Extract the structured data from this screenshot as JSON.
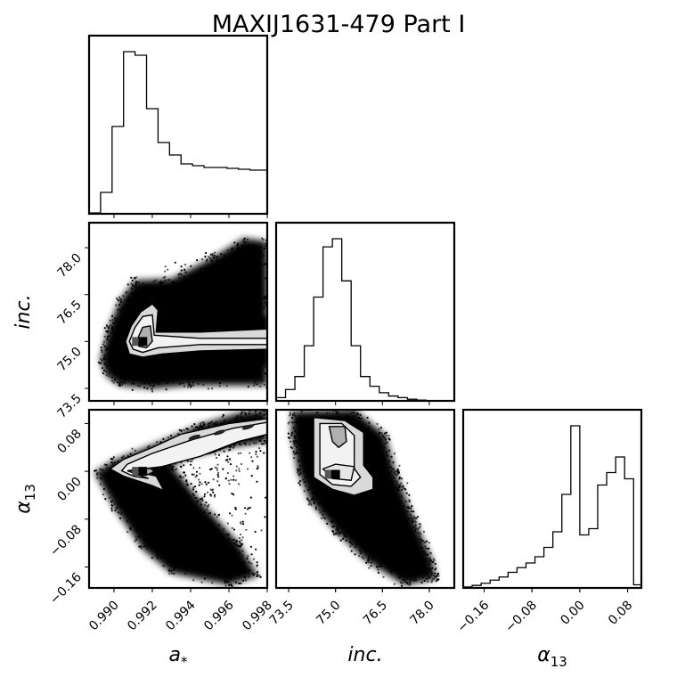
{
  "chart_data": {
    "type": "corner",
    "title": "MAXIJ1631-479 Part I",
    "parameters": [
      {
        "key": "a",
        "label": "a",
        "label_sub": "*",
        "range": [
          0.9887,
          0.998
        ],
        "ticks": [
          0.99,
          0.992,
          0.994,
          0.996,
          0.998
        ],
        "tick_labels": [
          "0.990",
          "0.992",
          "0.994",
          "0.996",
          "0.998"
        ]
      },
      {
        "key": "inc",
        "label": "inc.",
        "label_sub": "",
        "range": [
          73.1,
          78.8
        ],
        "ticks": [
          73.5,
          75.0,
          76.5,
          78.0
        ],
        "tick_labels": [
          "73.5",
          "75.0",
          "76.5",
          "78.0"
        ]
      },
      {
        "key": "alpha",
        "label": "α",
        "label_sub": "13",
        "range": [
          -0.195,
          0.103
        ],
        "ticks": [
          -0.16,
          -0.08,
          0.0,
          0.08
        ],
        "tick_labels": [
          "−0.16",
          "−0.08",
          "0.00",
          "0.08"
        ]
      }
    ],
    "histograms": {
      "a": {
        "bin_edges": [
          0.9887,
          0.9893,
          0.9899,
          0.9905,
          0.9911,
          0.9917,
          0.9923,
          0.9929,
          0.9935,
          0.9941,
          0.9947,
          0.9953,
          0.9959,
          0.9965,
          0.9971,
          0.9977,
          0.998
        ],
        "counts": [
          0.5,
          12,
          49,
          91,
          89,
          59,
          40,
          33,
          28,
          27,
          26,
          26,
          25.5,
          25,
          24.5,
          24.5
        ]
      },
      "inc": {
        "bin_edges": [
          73.1,
          73.4,
          73.7,
          74.0,
          74.3,
          74.6,
          74.9,
          75.2,
          75.5,
          75.8,
          76.1,
          76.4,
          76.7,
          77.0,
          77.3,
          77.6,
          77.9,
          78.2,
          78.5,
          78.8
        ],
        "counts": [
          2,
          7,
          15,
          34,
          64,
          95,
          100,
          74,
          34,
          15,
          9,
          5,
          3,
          2,
          1,
          0.5,
          0.2,
          0.1,
          0
        ]
      },
      "alpha": {
        "bin_edges": [
          -0.195,
          -0.18,
          -0.165,
          -0.15,
          -0.135,
          -0.12,
          -0.105,
          -0.09,
          -0.075,
          -0.06,
          -0.045,
          -0.03,
          -0.015,
          0,
          0.015,
          0.03,
          0.045,
          0.06,
          0.075,
          0.09,
          0.103
        ],
        "counts": [
          0.3,
          0.8,
          1.5,
          2.5,
          3.5,
          5,
          6.5,
          8,
          10,
          13,
          18,
          30,
          52,
          17,
          19,
          33,
          37,
          42,
          35,
          1
        ]
      }
    },
    "density_panels": [
      {
        "x": "a",
        "y": "inc",
        "mode": {
          "x": 0.9915,
          "y": 75.0
        },
        "contours": [
          [
            [
              0.9906,
              75.0
            ],
            [
              0.9909,
              75.5
            ],
            [
              0.9914,
              75.95
            ],
            [
              0.992,
              76.2
            ],
            [
              0.9923,
              76.0
            ],
            [
              0.9922,
              75.3
            ],
            [
              0.9945,
              75.3
            ],
            [
              0.998,
              75.4
            ],
            [
              0.998,
              74.75
            ],
            [
              0.9945,
              74.7
            ],
            [
              0.9925,
              74.6
            ],
            [
              0.9915,
              74.5
            ],
            [
              0.9908,
              74.6
            ]
          ],
          [
            [
              0.9908,
              75.0
            ],
            [
              0.9911,
              75.45
            ],
            [
              0.9915,
              75.8
            ],
            [
              0.992,
              75.85
            ],
            [
              0.9921,
              75.2
            ],
            [
              0.9945,
              75.1
            ],
            [
              0.998,
              75.1
            ],
            [
              0.998,
              74.9
            ],
            [
              0.9945,
              74.9
            ],
            [
              0.9923,
              74.8
            ],
            [
              0.9915,
              74.65
            ],
            [
              0.991,
              74.75
            ]
          ],
          [
            [
              0.9912,
              75.05
            ],
            [
              0.9915,
              75.45
            ],
            [
              0.9919,
              75.5
            ],
            [
              0.992,
              75.0
            ],
            [
              0.9917,
              74.8
            ],
            [
              0.9913,
              74.85
            ]
          ]
        ],
        "cloud": [
          [
            [
              0.9893,
              74.4
            ],
            [
              0.9897,
              75.4
            ],
            [
              0.9903,
              76.3
            ],
            [
              0.9911,
              76.95
            ],
            [
              0.993,
              77.0
            ],
            [
              0.9952,
              77.7
            ],
            [
              0.9968,
              78.3
            ],
            [
              0.998,
              78.2
            ],
            [
              0.998,
              76.3
            ],
            [
              0.9965,
              76.2
            ],
            [
              0.9952,
              76.0
            ],
            [
              0.9942,
              75.7
            ],
            [
              0.9943,
              76.5
            ],
            [
              0.998,
              76.4
            ],
            [
              0.998,
              73.6
            ],
            [
              0.994,
              73.6
            ],
            [
              0.992,
              73.5
            ],
            [
              0.9903,
              73.6
            ],
            [
              0.9896,
              73.9
            ]
          ],
          [
            [
              0.99,
              74.6
            ],
            [
              0.9903,
              75.5
            ],
            [
              0.9909,
              76.2
            ],
            [
              0.9918,
              76.55
            ],
            [
              0.9926,
              76.3
            ],
            [
              0.9925,
              75.6
            ],
            [
              0.995,
              75.7
            ],
            [
              0.998,
              75.8
            ],
            [
              0.998,
              74.2
            ],
            [
              0.995,
              74.2
            ],
            [
              0.9925,
              74.1
            ],
            [
              0.991,
              74.1
            ],
            [
              0.9902,
              74.2
            ]
          ]
        ]
      },
      {
        "x": "a",
        "y": "alpha",
        "mode": {
          "x": 0.9915,
          "y": 0.0
        },
        "contours": [
          [
            [
              0.9905,
              0.004
            ],
            [
              0.9925,
              0.012
            ],
            [
              0.995,
              0.03
            ],
            [
              0.997,
              0.055
            ],
            [
              0.998,
              0.068
            ],
            [
              0.998,
              0.088
            ],
            [
              0.996,
              0.08
            ],
            [
              0.9935,
              0.062
            ],
            [
              0.992,
              0.04
            ],
            [
              0.9905,
              0.02
            ],
            [
              0.9898,
              0.004
            ],
            [
              0.9905,
              -0.008
            ],
            [
              0.992,
              -0.024
            ],
            [
              0.9926,
              -0.032
            ],
            [
              0.9922,
              -0.008
            ]
          ],
          [
            [
              0.9907,
              0.001
            ],
            [
              0.9925,
              0.008
            ],
            [
              0.9945,
              0.025
            ],
            [
              0.9965,
              0.05
            ],
            [
              0.998,
              0.062
            ],
            [
              0.998,
              0.082
            ],
            [
              0.9962,
              0.072
            ],
            [
              0.994,
              0.052
            ],
            [
              0.992,
              0.03
            ],
            [
              0.9907,
              0.012
            ],
            [
              0.9904,
              0.001
            ],
            [
              0.991,
              -0.008
            ],
            [
              0.9918,
              -0.012
            ]
          ],
          [
            [
              0.991,
              0.0
            ],
            [
              0.9914,
              0.004
            ],
            [
              0.9919,
              0.005
            ],
            [
              0.9921,
              0.0
            ],
            [
              0.9918,
              -0.005
            ],
            [
              0.9913,
              -0.005
            ]
          ]
        ],
        "cloud": [
          [
            [
              0.989,
              -0.002
            ],
            [
              0.99,
              0.018
            ],
            [
              0.9925,
              0.05
            ],
            [
              0.9945,
              0.078
            ],
            [
              0.9965,
              0.097
            ],
            [
              0.998,
              0.103
            ],
            [
              0.998,
              0.05
            ],
            [
              0.996,
              0.04
            ],
            [
              0.994,
              0.025
            ],
            [
              0.993,
              0.01
            ],
            [
              0.9945,
              -0.05
            ],
            [
              0.9965,
              -0.12
            ],
            [
              0.9975,
              -0.175
            ],
            [
              0.996,
              -0.19
            ],
            [
              0.993,
              -0.17
            ],
            [
              0.9915,
              -0.13
            ],
            [
              0.99,
              -0.06
            ]
          ]
        ],
        "streaks": [
          [
            0.9942,
            0.057
          ],
          [
            0.9955,
            0.065
          ],
          [
            0.997,
            0.074
          ]
        ]
      },
      {
        "x": "inc",
        "y": "alpha",
        "mode": {
          "x": 75.0,
          "y": -0.005
        },
        "contours": [
          [
            [
              74.3,
              0.09
            ],
            [
              75.3,
              0.085
            ],
            [
              75.9,
              0.065
            ],
            [
              75.9,
              0.01
            ],
            [
              76.2,
              -0.01
            ],
            [
              76.2,
              -0.03
            ],
            [
              75.6,
              -0.04
            ],
            [
              74.9,
              -0.03
            ],
            [
              74.3,
              -0.01
            ],
            [
              74.3,
              0.04
            ]
          ],
          [
            [
              74.5,
              0.08
            ],
            [
              75.2,
              0.08
            ],
            [
              75.6,
              0.06
            ],
            [
              75.6,
              0.005
            ],
            [
              75.8,
              -0.01
            ],
            [
              75.5,
              -0.025
            ],
            [
              74.9,
              -0.022
            ],
            [
              74.5,
              -0.005
            ],
            [
              74.5,
              0.04
            ]
          ],
          [
            [
              74.8,
              0.075
            ],
            [
              75.3,
              0.075
            ],
            [
              75.35,
              0.05
            ],
            [
              75.1,
              0.04
            ],
            [
              74.9,
              0.05
            ]
          ],
          [
            [
              74.6,
              0.004
            ],
            [
              75.0,
              0.012
            ],
            [
              75.6,
              0.008
            ],
            [
              75.5,
              -0.015
            ],
            [
              74.9,
              -0.012
            ]
          ]
        ],
        "cloud": [
          [
            [
              73.6,
              0.1
            ],
            [
              75.6,
              0.103
            ],
            [
              76.6,
              0.06
            ],
            [
              76.9,
              0.0
            ],
            [
              77.5,
              -0.08
            ],
            [
              78.1,
              -0.15
            ],
            [
              78.2,
              -0.18
            ],
            [
              77.2,
              -0.19
            ],
            [
              76.0,
              -0.15
            ],
            [
              75.0,
              -0.1
            ],
            [
              74.2,
              -0.05
            ],
            [
              73.8,
              0.0
            ],
            [
              73.6,
              0.06
            ]
          ]
        ]
      }
    ]
  }
}
